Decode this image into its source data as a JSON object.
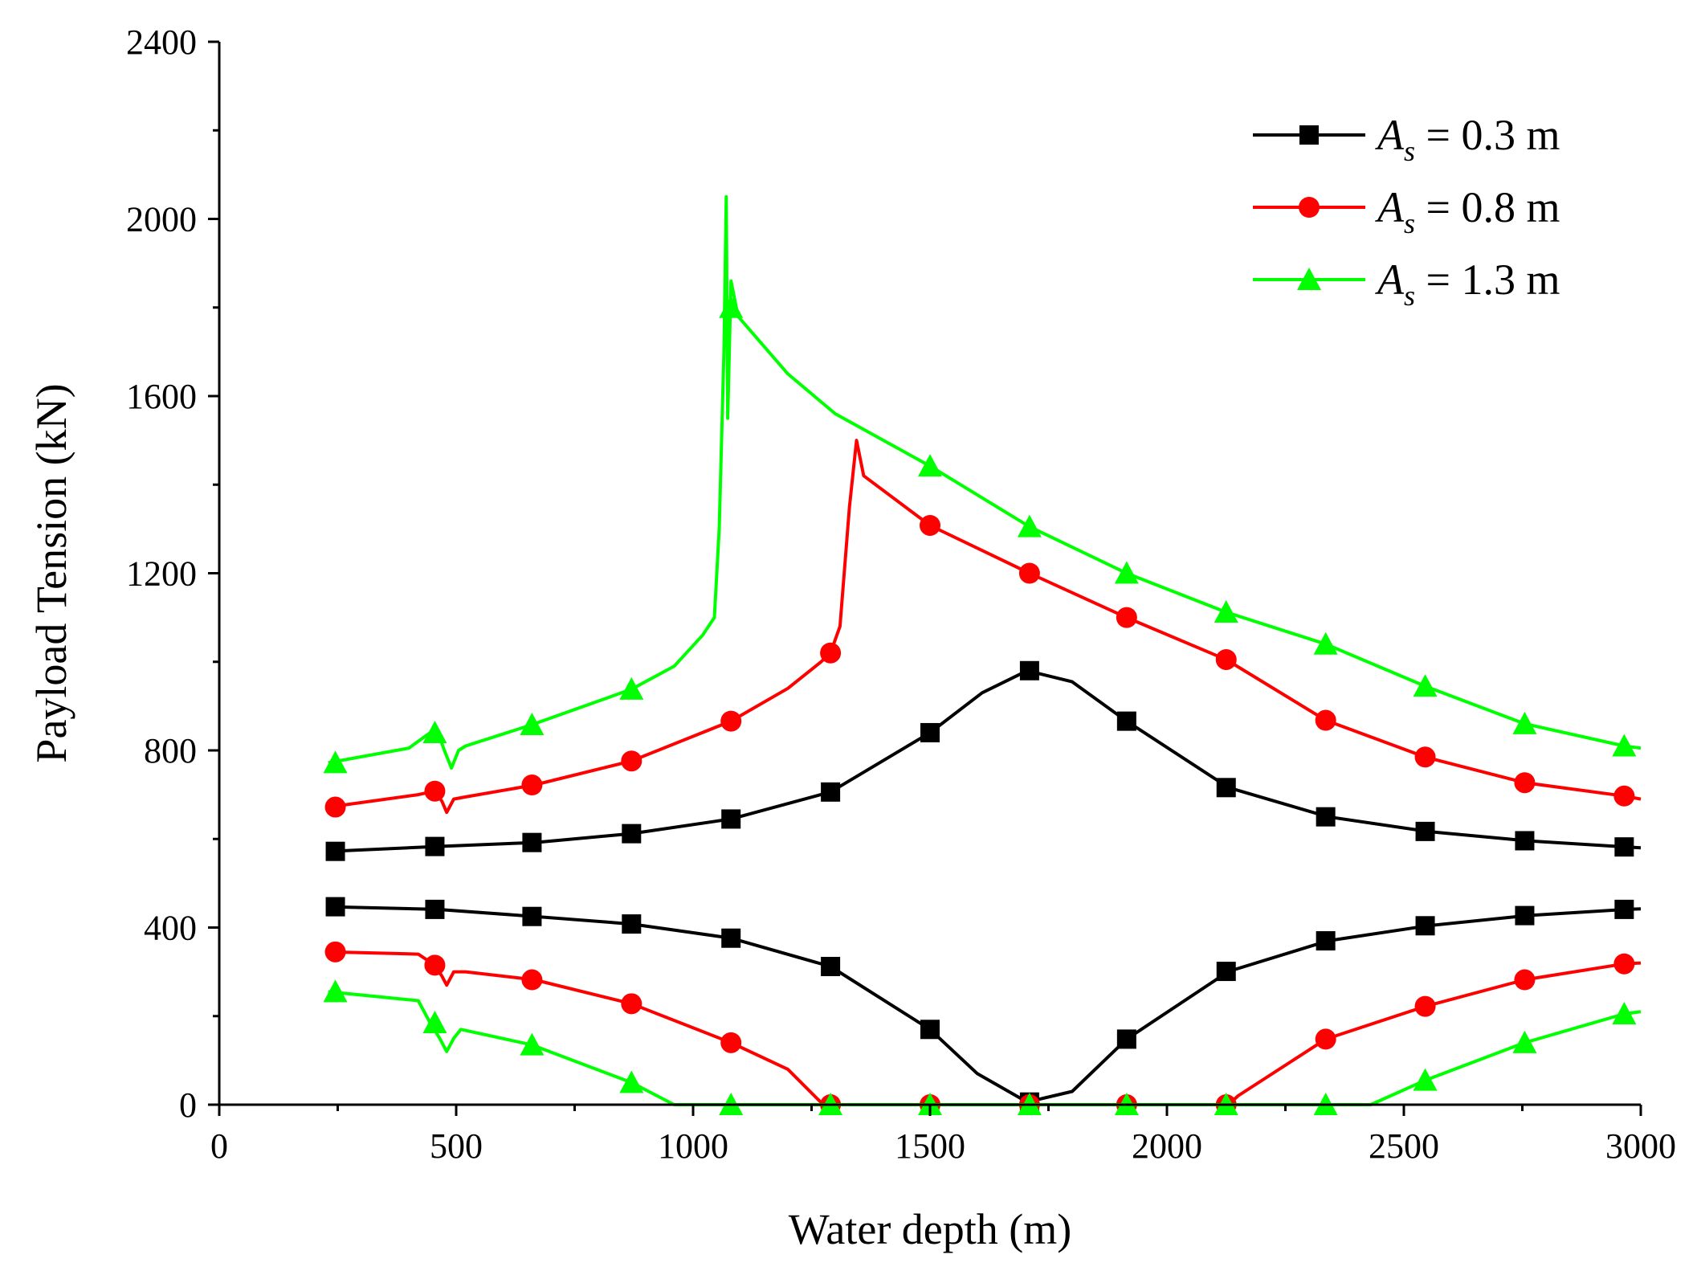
{
  "chart_data": {
    "type": "line",
    "xlabel": "Water depth (m)",
    "ylabel": "Payload Tension (kN)",
    "xlim": [
      0,
      3000
    ],
    "ylim": [
      0,
      2400
    ],
    "xticks": [
      "0",
      "500",
      "1000",
      "1500",
      "2000",
      "2500",
      "3000"
    ],
    "yticks": [
      "0",
      "400",
      "800",
      "1200",
      "1600",
      "2000",
      "2400"
    ],
    "grid": false,
    "legend_position": "top-right",
    "series": [
      {
        "name": "A_s = 0.3 m",
        "legend_symbol": "A",
        "legend_subscript": "s",
        "legend_rest": " = 0.3 m",
        "color": "#000000",
        "marker": "square",
        "upper": [
          [
            230,
            572
          ],
          [
            460,
            583
          ],
          [
            665,
            592
          ],
          [
            870,
            612
          ],
          [
            1080,
            645
          ],
          [
            1290,
            706
          ],
          [
            1500,
            840
          ],
          [
            1610,
            930
          ],
          [
            1705,
            980
          ],
          [
            1800,
            955
          ],
          [
            1915,
            866
          ],
          [
            2130,
            716
          ],
          [
            2340,
            650
          ],
          [
            2550,
            617
          ],
          [
            2760,
            596
          ],
          [
            2970,
            582
          ],
          [
            3000,
            580
          ]
        ],
        "lower": [
          [
            230,
            447
          ],
          [
            460,
            441
          ],
          [
            665,
            425
          ],
          [
            870,
            408
          ],
          [
            1080,
            376
          ],
          [
            1290,
            312
          ],
          [
            1500,
            170
          ],
          [
            1600,
            70
          ],
          [
            1705,
            6
          ],
          [
            1800,
            30
          ],
          [
            1915,
            148
          ],
          [
            2130,
            301
          ],
          [
            2340,
            370
          ],
          [
            2550,
            404
          ],
          [
            2760,
            427
          ],
          [
            2970,
            441
          ],
          [
            3000,
            442
          ]
        ],
        "markers_upper": [
          [
            245,
            572
          ],
          [
            455,
            583
          ],
          [
            660,
            592
          ],
          [
            870,
            612
          ],
          [
            1080,
            645
          ],
          [
            1290,
            706
          ],
          [
            1500,
            840
          ],
          [
            1710,
            980
          ],
          [
            1915,
            866
          ],
          [
            2125,
            716
          ],
          [
            2335,
            650
          ],
          [
            2545,
            617
          ],
          [
            2755,
            596
          ],
          [
            2965,
            582
          ]
        ],
        "markers_lower": [
          [
            245,
            447
          ],
          [
            455,
            441
          ],
          [
            660,
            425
          ],
          [
            870,
            408
          ],
          [
            1080,
            376
          ],
          [
            1290,
            312
          ],
          [
            1500,
            170
          ],
          [
            1710,
            6
          ],
          [
            1915,
            148
          ],
          [
            2125,
            301
          ],
          [
            2335,
            370
          ],
          [
            2545,
            404
          ],
          [
            2755,
            427
          ],
          [
            2965,
            441
          ]
        ]
      },
      {
        "name": "A_s = 0.8 m",
        "legend_symbol": "A",
        "legend_subscript": "s",
        "legend_rest": " = 0.8 m",
        "color": "#ff0000",
        "marker": "circle",
        "upper": [
          [
            230,
            672
          ],
          [
            420,
            700
          ],
          [
            455,
            708
          ],
          [
            470,
            685
          ],
          [
            480,
            660
          ],
          [
            495,
            690
          ],
          [
            520,
            695
          ],
          [
            665,
            722
          ],
          [
            870,
            776
          ],
          [
            1080,
            866
          ],
          [
            1200,
            940
          ],
          [
            1270,
            1000
          ],
          [
            1290,
            1020
          ],
          [
            1310,
            1080
          ],
          [
            1330,
            1350
          ],
          [
            1345,
            1500
          ],
          [
            1360,
            1420
          ],
          [
            1500,
            1308
          ],
          [
            1710,
            1200
          ],
          [
            1915,
            1100
          ],
          [
            2125,
            1005
          ],
          [
            2335,
            868
          ],
          [
            2545,
            785
          ],
          [
            2755,
            727
          ],
          [
            2965,
            697
          ],
          [
            3000,
            690
          ]
        ],
        "lower": [
          [
            230,
            345
          ],
          [
            420,
            340
          ],
          [
            455,
            315
          ],
          [
            470,
            290
          ],
          [
            480,
            270
          ],
          [
            495,
            300
          ],
          [
            520,
            300
          ],
          [
            665,
            282
          ],
          [
            870,
            228
          ],
          [
            1080,
            140
          ],
          [
            1200,
            80
          ],
          [
            1270,
            5
          ],
          [
            1280,
            0
          ],
          [
            2130,
            0
          ],
          [
            2150,
            20
          ],
          [
            2335,
            148
          ],
          [
            2545,
            222
          ],
          [
            2755,
            282
          ],
          [
            2965,
            318
          ],
          [
            3000,
            320
          ]
        ],
        "markers_upper": [
          [
            245,
            672
          ],
          [
            455,
            708
          ],
          [
            660,
            722
          ],
          [
            870,
            776
          ],
          [
            1080,
            866
          ],
          [
            1290,
            1020
          ],
          [
            1500,
            1308
          ],
          [
            1710,
            1200
          ],
          [
            1915,
            1100
          ],
          [
            2125,
            1005
          ],
          [
            2335,
            868
          ],
          [
            2545,
            785
          ],
          [
            2755,
            727
          ],
          [
            2965,
            697
          ]
        ],
        "markers_lower": [
          [
            245,
            345
          ],
          [
            455,
            315
          ],
          [
            660,
            282
          ],
          [
            870,
            228
          ],
          [
            1080,
            140
          ],
          [
            1290,
            0
          ],
          [
            1500,
            0
          ],
          [
            1710,
            0
          ],
          [
            1915,
            0
          ],
          [
            2125,
            0
          ],
          [
            2335,
            148
          ],
          [
            2545,
            222
          ],
          [
            2755,
            282
          ],
          [
            2965,
            318
          ]
        ]
      },
      {
        "name": "A_s = 1.3 m",
        "legend_symbol": "A",
        "legend_subscript": "s",
        "legend_rest": " = 1.3 m",
        "color": "#00ff00",
        "marker": "triangle",
        "upper": [
          [
            230,
            772
          ],
          [
            400,
            805
          ],
          [
            445,
            840
          ],
          [
            465,
            830
          ],
          [
            475,
            800
          ],
          [
            490,
            760
          ],
          [
            505,
            800
          ],
          [
            520,
            810
          ],
          [
            660,
            858
          ],
          [
            870,
            938
          ],
          [
            960,
            990
          ],
          [
            1020,
            1060
          ],
          [
            1045,
            1100
          ],
          [
            1055,
            1300
          ],
          [
            1065,
            1700
          ],
          [
            1070,
            2050
          ],
          [
            1073,
            1550
          ],
          [
            1080,
            1860
          ],
          [
            1095,
            1780
          ],
          [
            1200,
            1650
          ],
          [
            1300,
            1560
          ],
          [
            1500,
            1442
          ],
          [
            1710,
            1305
          ],
          [
            1915,
            1200
          ],
          [
            2125,
            1112
          ],
          [
            2335,
            1040
          ],
          [
            2545,
            945
          ],
          [
            2755,
            860
          ],
          [
            2965,
            810
          ],
          [
            3000,
            805
          ]
        ],
        "lower": [
          [
            230,
            255
          ],
          [
            420,
            235
          ],
          [
            445,
            185
          ],
          [
            465,
            150
          ],
          [
            480,
            120
          ],
          [
            495,
            150
          ],
          [
            510,
            170
          ],
          [
            660,
            135
          ],
          [
            870,
            50
          ],
          [
            960,
            0
          ],
          [
            2430,
            0
          ],
          [
            2545,
            55
          ],
          [
            2755,
            140
          ],
          [
            2965,
            205
          ],
          [
            3000,
            210
          ]
        ],
        "markers_upper": [
          [
            245,
            772
          ],
          [
            455,
            840
          ],
          [
            660,
            858
          ],
          [
            870,
            938
          ],
          [
            1080,
            1800
          ],
          [
            1500,
            1442
          ],
          [
            1710,
            1305
          ],
          [
            1915,
            1200
          ],
          [
            2125,
            1112
          ],
          [
            2335,
            1040
          ],
          [
            2545,
            945
          ],
          [
            2755,
            860
          ],
          [
            2965,
            810
          ]
        ],
        "markers_lower": [
          [
            245,
            255
          ],
          [
            455,
            185
          ],
          [
            660,
            135
          ],
          [
            870,
            50
          ],
          [
            1080,
            0
          ],
          [
            1290,
            0
          ],
          [
            1500,
            0
          ],
          [
            1710,
            0
          ],
          [
            1915,
            0
          ],
          [
            2125,
            0
          ],
          [
            2335,
            0
          ],
          [
            2545,
            55
          ],
          [
            2755,
            140
          ],
          [
            2965,
            205
          ]
        ]
      }
    ]
  }
}
